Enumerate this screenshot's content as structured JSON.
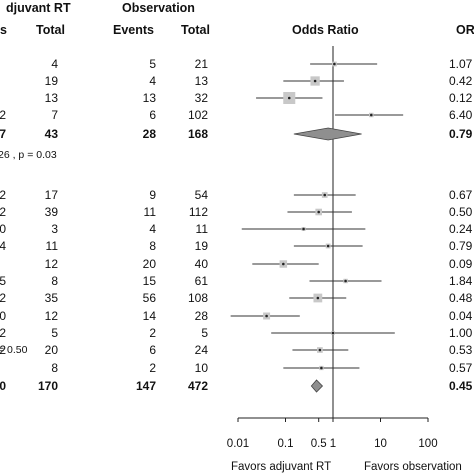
{
  "header": {
    "adjuvant_group": "djuvant RT",
    "observation_group": "Observation",
    "col_events_left": "s",
    "col_total_left": "Total",
    "col_events_obs": "Events",
    "col_total_obs": "Total",
    "col_odds_ratio": "Odds Ratio",
    "col_or": "OR"
  },
  "subgroup1": {
    "heterogeneity": "26 , p = 0.03"
  },
  "subgroup2": {
    "heterogeneity": "= 0.50"
  },
  "rows": [
    {
      "ev_adj": "",
      "tot_adj": "4",
      "ev_obs": "5",
      "tot_obs": "21",
      "or_text": "1.07",
      "bold": false
    },
    {
      "ev_adj": "",
      "tot_adj": "19",
      "ev_obs": "4",
      "tot_obs": "13",
      "or_text": "0.42",
      "bold": false
    },
    {
      "ev_adj": "",
      "tot_adj": "13",
      "ev_obs": "13",
      "tot_obs": "32",
      "or_text": "0.12",
      "bold": false
    },
    {
      "ev_adj": "2",
      "tot_adj": "7",
      "ev_obs": "6",
      "tot_obs": "102",
      "or_text": "6.40",
      "bold": false
    },
    {
      "ev_adj": "7",
      "tot_adj": "43",
      "ev_obs": "28",
      "tot_obs": "168",
      "or_text": "0.79",
      "bold": true
    },
    {
      "ev_adj": "2",
      "tot_adj": "17",
      "ev_obs": "9",
      "tot_obs": "54",
      "or_text": "0.67",
      "bold": false
    },
    {
      "ev_adj": "2",
      "tot_adj": "39",
      "ev_obs": "11",
      "tot_obs": "112",
      "or_text": "0.50",
      "bold": false
    },
    {
      "ev_adj": "0",
      "tot_adj": "3",
      "ev_obs": "4",
      "tot_obs": "11",
      "or_text": "0.24",
      "bold": false
    },
    {
      "ev_adj": "4",
      "tot_adj": "11",
      "ev_obs": "8",
      "tot_obs": "19",
      "or_text": "0.79",
      "bold": false
    },
    {
      "ev_adj": "",
      "tot_adj": "12",
      "ev_obs": "20",
      "tot_obs": "40",
      "or_text": "0.09",
      "bold": false
    },
    {
      "ev_adj": "5",
      "tot_adj": "8",
      "ev_obs": "15",
      "tot_obs": "61",
      "or_text": "1.84",
      "bold": false
    },
    {
      "ev_adj": "2",
      "tot_adj": "35",
      "ev_obs": "56",
      "tot_obs": "108",
      "or_text": "0.48",
      "bold": false
    },
    {
      "ev_adj": "0",
      "tot_adj": "12",
      "ev_obs": "14",
      "tot_obs": "28",
      "or_text": "0.04",
      "bold": false
    },
    {
      "ev_adj": "2",
      "tot_adj": "5",
      "ev_obs": "2",
      "tot_obs": "5",
      "or_text": "1.00",
      "bold": false
    },
    {
      "ev_adj": "2",
      "tot_adj": "20",
      "ev_obs": "6",
      "tot_obs": "24",
      "or_text": "0.53",
      "bold": false
    },
    {
      "ev_adj": "",
      "tot_adj": "8",
      "ev_obs": "2",
      "tot_obs": "10",
      "or_text": "0.57",
      "bold": false
    },
    {
      "ev_adj": "0",
      "tot_adj": "170",
      "ev_obs": "147",
      "tot_obs": "472",
      "or_text": "0.45",
      "bold": true
    }
  ],
  "axis": {
    "ticks": [
      {
        "value": 0.01,
        "label": "0.01"
      },
      {
        "value": 0.1,
        "label": "0.1"
      },
      {
        "value": 0.5,
        "label": "0.5"
      },
      {
        "value": 1,
        "label": "1"
      },
      {
        "value": 10,
        "label": "10"
      },
      {
        "value": 100,
        "label": "100"
      }
    ],
    "favors_left": "Favors adjuvant RT",
    "favors_right": "Favors observation"
  },
  "chart_data": {
    "type": "forest",
    "x_scale": "log",
    "xlim": [
      0.01,
      100
    ],
    "reference_line": 1,
    "studies": [
      {
        "or": 1.07,
        "lo": 0.33,
        "hi": 8.5,
        "weight": 0.1
      },
      {
        "or": 0.42,
        "lo": 0.09,
        "hi": 1.7,
        "weight": 0.35
      },
      {
        "or": 0.12,
        "lo": 0.024,
        "hi": 0.6,
        "weight": 0.5
      },
      {
        "or": 6.4,
        "lo": 1.1,
        "hi": 30,
        "weight": 0.08
      },
      {
        "or": 0.67,
        "lo": 0.15,
        "hi": 3.0,
        "weight": 0.15
      },
      {
        "or": 0.5,
        "lo": 0.11,
        "hi": 2.5,
        "weight": 0.2
      },
      {
        "or": 0.24,
        "lo": 0.012,
        "hi": 4.8,
        "weight": 0.05
      },
      {
        "or": 0.79,
        "lo": 0.15,
        "hi": 4.2,
        "weight": 0.1
      },
      {
        "or": 0.09,
        "lo": 0.02,
        "hi": 0.5,
        "weight": 0.25
      },
      {
        "or": 1.84,
        "lo": 0.32,
        "hi": 10.5,
        "weight": 0.08
      },
      {
        "or": 0.48,
        "lo": 0.12,
        "hi": 1.9,
        "weight": 0.32
      },
      {
        "or": 0.04,
        "lo": 0.007,
        "hi": 0.2,
        "weight": 0.22
      },
      {
        "or": 1.0,
        "lo": 0.05,
        "hi": 20,
        "weight": 0.04
      },
      {
        "or": 0.53,
        "lo": 0.14,
        "hi": 2.1,
        "weight": 0.15
      },
      {
        "or": 0.57,
        "lo": 0.09,
        "hi": 3.6,
        "weight": 0.07
      }
    ],
    "pooled": [
      {
        "or": 0.79,
        "lo": 0.15,
        "hi": 4.0
      },
      {
        "or": 0.45,
        "lo": 0.35,
        "hi": 0.6
      }
    ]
  }
}
